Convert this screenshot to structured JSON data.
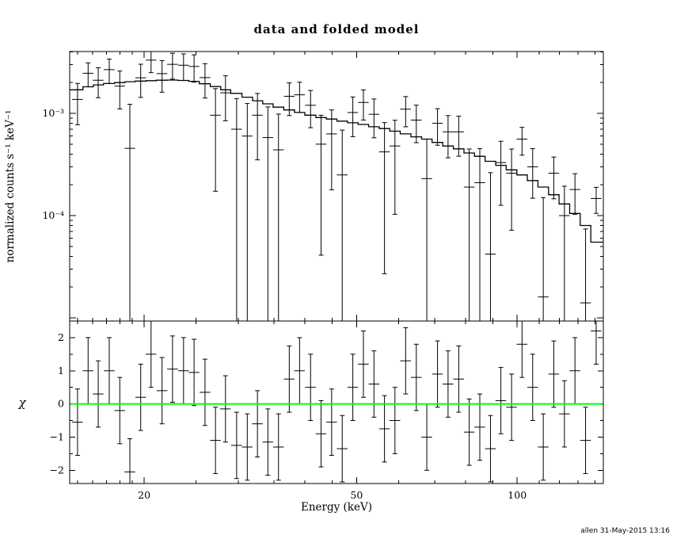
{
  "window": {
    "background": "#ffffff"
  },
  "chart_data": {
    "type": "scatter",
    "subtype": "xspec-ldata-plus-chi-residuals",
    "title": "data and folded model",
    "xlabel": "Energy (keV)",
    "ylabel_top": "normalized counts s⁻¹ keV⁻¹",
    "ylabel_bottom": "χ",
    "timestamp": "allen 31-May-2015 13:16",
    "legend": "none",
    "grid": false,
    "colors": {
      "data": "#000000",
      "model": "#000000",
      "zero_line": "#00ff00",
      "frame": "#000000"
    },
    "axes": {
      "x": {
        "scale": "log",
        "range": [
          14.5,
          145
        ],
        "major_ticks": [
          20,
          50,
          100
        ],
        "tick_labels": [
          "20",
          "50",
          "100"
        ],
        "minor_ticks": [
          15,
          16,
          17,
          18,
          19,
          25,
          30,
          35,
          40,
          45,
          60,
          70,
          80,
          90,
          110,
          120,
          130,
          140
        ]
      },
      "y_top": {
        "scale": "log",
        "range": [
          9.3e-06,
          0.00403
        ],
        "major_ticks": [
          1e-05,
          0.0001,
          0.001
        ],
        "labeled_ticks": [
          0.0001,
          0.001
        ],
        "tick_labels": [
          "10⁻⁴",
          "10⁻³"
        ]
      },
      "y_bottom": {
        "scale": "linear",
        "range": [
          -2.4,
          2.5
        ],
        "major_ticks": [
          -2,
          -1,
          0,
          1,
          2
        ],
        "tick_labels": [
          "−2",
          "−1",
          "0",
          "1",
          "2"
        ],
        "minor_step": 0.5,
        "chi_error_halflength": 1.0
      }
    },
    "bins_schema": [
      "energy_keV",
      "half_width_keV",
      "data_rate",
      "data_err",
      "model_rate",
      "chi"
    ],
    "bins": [
      [
        15.0,
        0.35,
        0.00137,
        0.000595,
        0.0017,
        -0.55
      ],
      [
        15.7,
        0.36,
        0.00247,
        0.000648,
        0.00182,
        1.0
      ],
      [
        16.4,
        0.38,
        0.00211,
        0.000686,
        0.0019,
        0.3
      ],
      [
        17.2,
        0.4,
        0.00268,
        0.000719,
        0.00196,
        1.0
      ],
      [
        18.0,
        0.41,
        0.00185,
        0.000746,
        0.002,
        -0.2
      ],
      [
        18.8,
        0.43,
        0.000455,
        0.000773,
        0.00204,
        -2.05
      ],
      [
        19.7,
        0.45,
        0.00223,
        0.000797,
        0.00207,
        0.2
      ],
      [
        20.6,
        0.47,
        0.00332,
        0.000817,
        0.00209,
        1.5
      ],
      [
        21.6,
        0.5,
        0.00245,
        0.000838,
        0.00211,
        0.4
      ],
      [
        22.6,
        0.52,
        0.00302,
        0.000856,
        0.00212,
        1.05
      ],
      [
        23.7,
        0.55,
        0.00296,
        0.000861,
        0.0021,
        1.0
      ],
      [
        24.8,
        0.57,
        0.00288,
        0.000859,
        0.00206,
        0.95
      ],
      [
        26.0,
        0.6,
        0.00224,
        0.000827,
        0.00195,
        0.35
      ],
      [
        27.2,
        0.63,
        0.00096,
        0.000787,
        0.00183,
        -1.1
      ],
      [
        28.4,
        0.65,
        0.00159,
        0.000743,
        0.0017,
        -0.15
      ],
      [
        29.8,
        0.69,
        0.0007,
        0.000697,
        0.00157,
        -1.25
      ],
      [
        31.2,
        0.72,
        0.0006,
        0.000649,
        0.00144,
        -1.3
      ],
      [
        32.6,
        0.75,
        0.00096,
        0.000609,
        0.00133,
        -0.6
      ],
      [
        34.1,
        0.78,
        0.00058,
        0.000577,
        0.00124,
        -1.15
      ],
      [
        35.7,
        0.82,
        0.00044,
        0.000544,
        0.00115,
        -1.3
      ],
      [
        37.4,
        0.86,
        0.00147,
        0.000518,
        0.00108,
        0.75
      ],
      [
        39.1,
        0.9,
        0.00152,
        0.000498,
        0.00102,
        1.0
      ],
      [
        41.0,
        0.94,
        0.0012,
        0.000476,
        0.00096,
        0.5
      ],
      [
        42.9,
        0.99,
        0.0005,
        0.000459,
        0.00091,
        -0.9
      ],
      [
        44.9,
        1.03,
        0.00063,
        0.000451,
        0.00088,
        -0.55
      ],
      [
        47.0,
        1.08,
        0.00025,
        0.000437,
        0.00084,
        -1.35
      ],
      [
        49.2,
        1.13,
        0.00102,
        0.000428,
        0.00081,
        0.5
      ],
      [
        51.5,
        1.18,
        0.00128,
        0.000419,
        0.00078,
        1.2
      ],
      [
        53.9,
        1.24,
        0.00098,
        0.000403,
        0.00074,
        0.6
      ],
      [
        56.4,
        1.3,
        0.00042,
        0.000393,
        0.00071,
        -0.75
      ],
      [
        59.0,
        1.36,
        0.00048,
        0.000377,
        0.00067,
        -0.5
      ],
      [
        61.8,
        1.42,
        0.0011,
        0.00036,
        0.00063,
        1.3
      ],
      [
        64.7,
        1.49,
        0.00086,
        0.000343,
        0.00059,
        0.8
      ],
      [
        67.7,
        1.56,
        0.00023,
        0.00033,
        0.00056,
        -1.0
      ],
      [
        70.9,
        1.63,
        0.0008,
        0.000312,
        0.00052,
        0.9
      ],
      [
        74.2,
        1.71,
        0.00066,
        0.000292,
        0.00048,
        0.6
      ],
      [
        77.7,
        1.79,
        0.00066,
        0.000279,
        0.00045,
        0.75
      ],
      [
        81.3,
        1.87,
        0.00019,
        0.000258,
        0.00041,
        -0.85
      ],
      [
        85.1,
        1.96,
        0.00021,
        0.000243,
        0.00038,
        -0.7
      ],
      [
        89.1,
        2.05,
        4.2e-05,
        0.000221,
        0.00034,
        -1.35
      ],
      [
        93.2,
        2.14,
        0.00033,
        0.000204,
        0.00031,
        0.1
      ],
      [
        97.6,
        2.24,
        0.00026,
        0.000188,
        0.00028,
        -0.1
      ],
      [
        102.1,
        2.35,
        0.00056,
        0.00017,
        0.00025,
        1.8
      ],
      [
        106.9,
        2.46,
        0.0003,
        0.000152,
        0.00022,
        0.5
      ],
      [
        111.9,
        2.57,
        1.6e-05,
        0.000134,
        0.00019,
        -1.3
      ],
      [
        117.1,
        2.69,
        0.00026,
        0.000114,
        0.00016,
        0.9
      ],
      [
        122.6,
        2.82,
        0.0001,
        9.4e-05,
        0.00013,
        -0.3
      ],
      [
        128.3,
        2.95,
        0.00018,
        7.7e-05,
        0.000105,
        1.0
      ],
      [
        134.3,
        3.09,
        1.4e-05,
        6e-05,
        8e-05,
        -1.1
      ],
      [
        140.6,
        3.23,
        0.000147,
        4.2e-05,
        5.5e-05,
        2.2
      ]
    ]
  }
}
